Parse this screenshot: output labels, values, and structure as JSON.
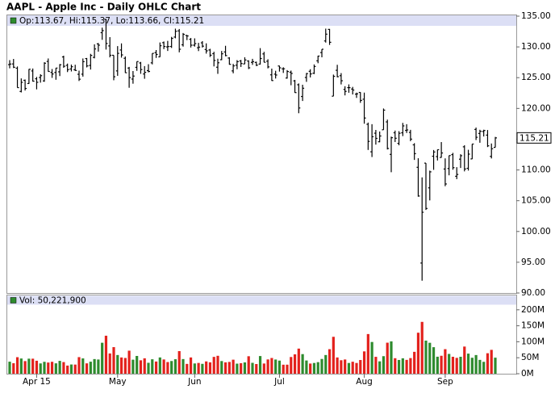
{
  "chart_data": [
    {
      "type": "ohlc",
      "title": "AAPL - Apple Inc - Daily OHLC Chart",
      "legend_label": "Op:113.67, Hi:115.37, Lo:113.66, Cl:115.21",
      "categories": [
        null,
        null,
        null,
        null,
        null,
        null,
        null,
        "Apr 15",
        null,
        null,
        null,
        null,
        null,
        null,
        null,
        null,
        null,
        null,
        null,
        null,
        null,
        null,
        null,
        null,
        null,
        null,
        null,
        null,
        "May",
        null,
        null,
        null,
        null,
        null,
        null,
        null,
        null,
        null,
        null,
        null,
        null,
        null,
        null,
        null,
        null,
        null,
        null,
        null,
        "Jun",
        null,
        null,
        null,
        null,
        null,
        null,
        null,
        null,
        null,
        null,
        null,
        null,
        null,
        null,
        null,
        null,
        null,
        null,
        null,
        null,
        null,
        "Jul",
        null,
        null,
        null,
        null,
        null,
        null,
        null,
        null,
        null,
        null,
        null,
        null,
        null,
        null,
        null,
        null,
        null,
        null,
        null,
        null,
        null,
        "Aug",
        null,
        null,
        null,
        null,
        null,
        null,
        null,
        null,
        null,
        null,
        null,
        null,
        null,
        null,
        null,
        null,
        null,
        null,
        null,
        null,
        "Sep",
        null,
        null,
        null,
        null,
        null,
        null,
        null,
        null,
        null,
        null,
        null,
        null,
        null
      ],
      "open": [
        127.12,
        127.23,
        126.54,
        122.76,
        124.57,
        124.05,
        126.09,
        124.82,
        125.03,
        124.47,
        127.64,
        125.85,
        125.85,
        125.95,
        128.37,
        127.0,
        126.41,
        126.28,
        125.55,
        125.57,
        128.1,
        126.99,
        128.3,
        130.49,
        132.31,
        134.46,
        130.16,
        128.64,
        126.1,
        129.5,
        128.15,
        126.56,
        124.77,
        126.68,
        127.39,
        125.6,
        126.15,
        127.41,
        129.07,
        128.38,
        130.69,
        130.0,
        130.07,
        131.6,
        132.6,
        130.34,
        131.86,
        131.23,
        130.28,
        129.86,
        130.66,
        129.58,
        129.5,
        128.9,
        126.7,
        127.92,
        129.18,
        128.19,
        126.1,
        127.03,
        127.72,
        127.23,
        127.71,
        127.49,
        127.48,
        127.21,
        128.86,
        127.67,
        125.46,
        125.57,
        126.9,
        126.43,
        124.94,
        125.89,
        124.48,
        123.85,
        121.94,
        125.03,
        126.04,
        125.72,
        127.74,
        129.08,
        130.97,
        132.85,
        121.99,
        126.2,
        125.32,
        123.09,
        123.38,
        123.15,
        122.32,
        122.6,
        121.5,
        117.42,
        112.95,
        115.97,
        114.58,
        116.53,
        117.81,
        112.53,
        116.04,
        114.32,
        116.04,
        116.43,
        116.1,
        114.08,
        110.43,
        94.87,
        111.11,
        107.09,
        112.23,
        112.17,
        112.03,
        110.15,
        110.23,
        112.49,
        108.97,
        111.75,
        113.76,
        110.27,
        111.79,
        116.58,
        115.93,
        116.25,
        115.66,
        112.21,
        113.67
      ],
      "high": [
        127.85,
        128.04,
        126.82,
        124.88,
        124.7,
        126.4,
        126.49,
        125.12,
        125.56,
        127.51,
        128.12,
        126.4,
        126.58,
        127.21,
        128.57,
        127.29,
        127.13,
        127.1,
        126.14,
        128.12,
        128.2,
        128.87,
        130.42,
        130.63,
        133.13,
        134.54,
        131.59,
        128.64,
        130.13,
        130.57,
        128.45,
        126.75,
        126.08,
        127.62,
        127.56,
        126.88,
        127.19,
        128.95,
        129.49,
        130.72,
        130.88,
        130.98,
        131.63,
        132.97,
        132.91,
        132.26,
        131.95,
        131.45,
        131.39,
        130.66,
        130.94,
        130.58,
        129.69,
        129.21,
        128.08,
        129.34,
        130.18,
        128.33,
        127.24,
        127.85,
        127.88,
        128.31,
        127.82,
        128.06,
        127.61,
        129.8,
        129.2,
        127.99,
        126.47,
        126.12,
        126.94,
        126.69,
        126.23,
        126.15,
        124.64,
        124.06,
        123.85,
        125.76,
        126.37,
        127.15,
        128.57,
        129.62,
        132.97,
        132.92,
        125.5,
        127.09,
        125.74,
        123.61,
        123.91,
        123.5,
        122.57,
        122.64,
        122.57,
        117.7,
        117.44,
        116.5,
        116.25,
        119.99,
        118.18,
        115.42,
        116.4,
        116.31,
        117.65,
        117.44,
        116.52,
        114.35,
        111.9,
        108.8,
        111.11,
        109.89,
        113.24,
        113.31,
        114.53,
        111.88,
        112.34,
        112.78,
        110.45,
        112.56,
        114.02,
        113.28,
        114.21,
        116.89,
        116.53,
        116.54,
        116.49,
        114.3,
        115.37
      ],
      "low": [
        126.52,
        126.56,
        123.38,
        122.6,
        122.91,
        124.0,
        124.36,
        123.1,
        124.19,
        124.33,
        125.98,
        124.97,
        124.66,
        125.26,
        126.61,
        125.91,
        126.01,
        126.11,
        124.46,
        125.17,
        126.67,
        126.32,
        128.14,
        129.23,
        131.15,
        129.57,
        128.3,
        124.58,
        125.3,
        128.26,
        125.78,
        123.36,
        124.02,
        126.11,
        125.63,
        124.82,
        125.87,
        127.16,
        128.21,
        128.36,
        129.64,
        129.34,
        129.83,
        131.4,
        129.12,
        130.05,
        131.1,
        129.9,
        130.05,
        129.32,
        129.9,
        128.91,
        128.36,
        126.83,
        125.62,
        127.85,
        128.48,
        127.11,
        125.71,
        126.37,
        126.74,
        127.22,
        126.4,
        127.08,
        126.88,
        127.12,
        127.5,
        126.51,
        124.48,
        124.86,
        125.99,
        125.77,
        124.85,
        123.77,
        122.54,
        119.22,
        121.21,
        124.32,
        125.04,
        125.58,
        127.35,
        128.31,
        130.7,
        130.32,
        121.99,
        125.06,
        123.9,
        122.12,
        122.55,
        122.27,
        121.71,
        120.91,
        117.52,
        113.25,
        112.1,
        114.12,
        114.5,
        116.53,
        113.33,
        109.63,
        114.54,
        114.01,
        115.5,
        116.01,
        114.68,
        111.63,
        105.65,
        92.0,
        103.5,
        105.05,
        110.02,
        111.54,
        112.0,
        107.36,
        109.13,
        110.04,
        108.51,
        110.32,
        109.77,
        109.9,
        111.76,
        114.86,
        114.42,
        115.44,
        113.72,
        111.87,
        113.66
      ],
      "close": [
        127.21,
        126.69,
        123.38,
        124.24,
        123.25,
        126.37,
        124.43,
        124.25,
        125.32,
        127.35,
        126.01,
        125.6,
        126.56,
        127.1,
        126.85,
        126.3,
        126.78,
        126.17,
        124.75,
        127.6,
        126.91,
        128.62,
        129.67,
        130.28,
        132.65,
        130.56,
        128.64,
        125.15,
        128.95,
        128.7,
        125.8,
        125.01,
        125.26,
        127.62,
        126.32,
        125.87,
        126.01,
        128.95,
        128.77,
        130.19,
        130.07,
        130.06,
        131.39,
        132.54,
        129.62,
        132.04,
        131.78,
        130.28,
        130.54,
        129.96,
        130.12,
        129.36,
        128.65,
        127.8,
        127.42,
        128.88,
        128.59,
        127.17,
        126.92,
        127.6,
        127.3,
        127.88,
        126.6,
        127.61,
        127.03,
        128.11,
        127.5,
        126.75,
        124.53,
        125.43,
        126.6,
        126.44,
        126.0,
        125.69,
        122.57,
        120.07,
        123.28,
        125.66,
        125.61,
        126.82,
        128.51,
        129.62,
        132.07,
        130.75,
        125.22,
        125.16,
        124.5,
        122.77,
        123.38,
        122.99,
        122.37,
        121.3,
        118.44,
        114.64,
        115.4,
        115.13,
        115.52,
        119.72,
        113.49,
        115.24,
        115.15,
        115.96,
        117.16,
        116.5,
        115.01,
        112.65,
        105.76,
        103.12,
        103.74,
        109.69,
        112.92,
        113.29,
        112.76,
        107.72,
        112.34,
        110.37,
        109.27,
        112.31,
        110.15,
        112.57,
        114.21,
        115.31,
        116.28,
        116.41,
        113.92,
        113.45,
        115.21
      ],
      "color": "#000000",
      "band_color": "#dcdff5",
      "ylim": [
        90,
        135
      ],
      "yticks": [
        {
          "value": 90,
          "label": "90.00"
        },
        {
          "value": 95,
          "label": "95.00"
        },
        {
          "value": 100,
          "label": "100.00"
        },
        {
          "value": 105,
          "label": "105.00"
        },
        {
          "value": 110,
          "label": "110.00"
        },
        {
          "value": 115,
          "label": "115.00"
        },
        {
          "value": 120,
          "label": "120.00"
        },
        {
          "value": 125,
          "label": "125.00"
        },
        {
          "value": 130,
          "label": "130.00"
        },
        {
          "value": 135,
          "label": "135.00"
        }
      ]
    },
    {
      "type": "bar",
      "legend_label": "Vol: 50,221,900",
      "values": [
        37.7,
        32.8,
        51.7,
        47.6,
        39.5,
        47.1,
        47.0,
        40.6,
        32.2,
        37.2,
        35.0,
        37.3,
        32.5,
        40.2,
        36.4,
        25.5,
        28.9,
        28.6,
        51.9,
        47.9,
        32.4,
        37.6,
        45.8,
        44.5,
        96.9,
        118.9,
        63.4,
        83.2,
        58.5,
        50.9,
        49.3,
        72.1,
        43.9,
        55.6,
        42.0,
        48.2,
        34.2,
        45.2,
        38.2,
        50.9,
        44.6,
        36.5,
        39.7,
        45.3,
        70.7,
        45.8,
        30.7,
        50.9,
        32.1,
        33.7,
        30.9,
        38.5,
        35.6,
        52.7,
        56.1,
        39.6,
        35.6,
        36.9,
        43.9,
        31.5,
        32.9,
        35.4,
        54.7,
        34.1,
        30.3,
        55.3,
        31.9,
        44.7,
        49.2,
        44.4,
        41.0,
        28.2,
        28.3,
        52.3,
        60.6,
        78.6,
        61.3,
        41.4,
        31.8,
        33.6,
        36.2,
        46.2,
        58.5,
        76.8,
        115.5,
        50.9,
        42.2,
        44.5,
        33.6,
        37.5,
        33.6,
        42.9,
        69.9,
        124.1,
        99.3,
        52.9,
        38.7,
        54.9,
        97.1,
        101.2,
        48.5,
        43.0,
        48.2,
        43.3,
        48.9,
        68.5,
        128.3,
        162.2,
        103.6,
        96.8,
        83.0,
        53.2,
        56.2,
        76.8,
        61.9,
        53.0,
        49.6,
        53.0,
        85.0,
        62.9,
        49.9,
        58.4,
        43.3,
        37.2,
        64.1,
        74.7,
        50.2219
      ],
      "up_color": "#2e8b2e",
      "down_color": "#e3211c",
      "band_color": "#dcdff5",
      "ylim": [
        0,
        245
      ],
      "yticks": [
        {
          "value": 0,
          "label": "0M"
        },
        {
          "value": 50,
          "label": "50M"
        },
        {
          "value": 100,
          "label": "100M"
        },
        {
          "value": 150,
          "label": "150M"
        },
        {
          "value": 200,
          "label": "200M"
        }
      ]
    }
  ]
}
